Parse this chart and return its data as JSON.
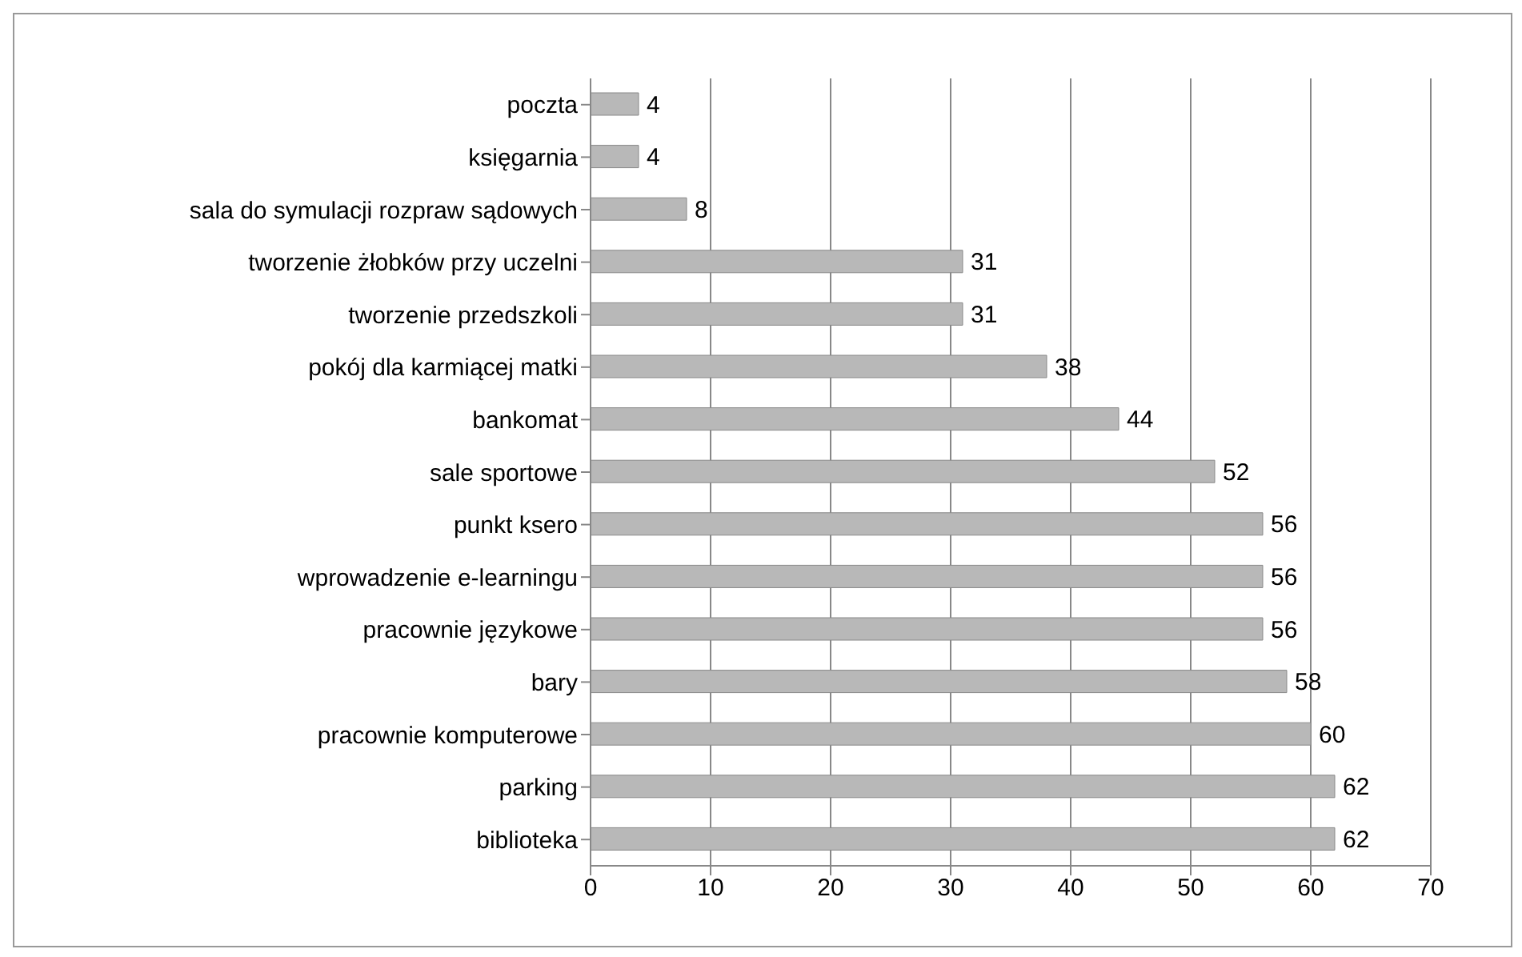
{
  "chart_data": {
    "type": "bar",
    "orientation": "horizontal",
    "categories": [
      "poczta",
      "księgarnia",
      "sala do symulacji rozpraw sądowych",
      "tworzenie żłobków przy uczelni",
      "tworzenie przedszkoli",
      "pokój dla karmiącej matki",
      "bankomat",
      "sale sportowe",
      "punkt ksero",
      "wprowadzenie e-learningu",
      "pracownie językowe",
      "bary",
      "pracownie komputerowe",
      "parking",
      "biblioteka"
    ],
    "values": [
      4,
      4,
      8,
      31,
      31,
      38,
      44,
      52,
      56,
      56,
      56,
      58,
      60,
      62,
      62
    ],
    "color": "#b8b8b8",
    "xlim": [
      0,
      70
    ],
    "xticks": [
      0,
      10,
      20,
      30,
      40,
      50,
      60,
      70
    ],
    "grid": "x",
    "data_labels": true
  }
}
